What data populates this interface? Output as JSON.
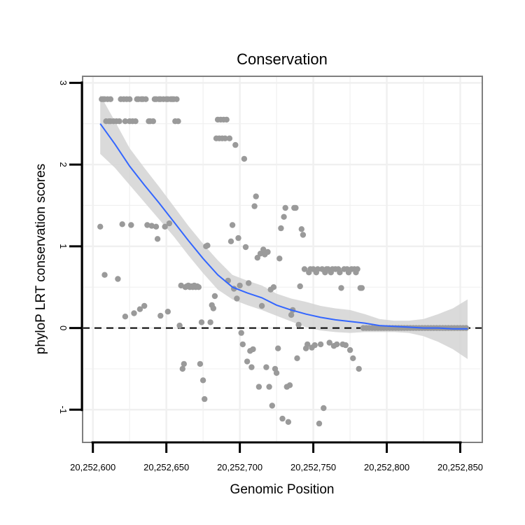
{
  "chart_data": {
    "type": "scatter",
    "title": "Conservation",
    "xlabel": "Genomic Position",
    "ylabel": "phyloP LRT conservation scores",
    "xlim": [
      20252593,
      20252865
    ],
    "ylim": [
      -1.4,
      3.08
    ],
    "xticks": [
      20252600,
      20252650,
      20252700,
      20252750,
      20252800,
      20252850
    ],
    "xtick_labels": [
      "20,252,600",
      "20,252,650",
      "20,252,700",
      "20,252,750",
      "20,252,800",
      "20,252,850"
    ],
    "yticks": [
      -1,
      0,
      1,
      2,
      3
    ],
    "ytick_labels": [
      "-1",
      "0",
      "1",
      "2",
      "3"
    ],
    "reference_line": {
      "y": 0,
      "style": "dashed"
    },
    "colors": {
      "points": "#9a9a9a",
      "smooth": "#3366ff",
      "band": "#d3d3d3",
      "frame": "#7f7f7f",
      "grid": "#f0f0f0"
    },
    "points": [
      {
        "x": 20252605,
        "y": 1.24
      },
      {
        "x": 20252606,
        "y": 2.8
      },
      {
        "x": 20252607,
        "y": 2.8
      },
      {
        "x": 20252608,
        "y": 2.8
      },
      {
        "x": 20252608,
        "y": 0.65
      },
      {
        "x": 20252609,
        "y": 2.53
      },
      {
        "x": 20252610,
        "y": 2.8
      },
      {
        "x": 20252611,
        "y": 2.53
      },
      {
        "x": 20252612,
        "y": 2.8
      },
      {
        "x": 20252612,
        "y": 2.53
      },
      {
        "x": 20252614,
        "y": 2.53
      },
      {
        "x": 20252616,
        "y": 2.53
      },
      {
        "x": 20252617,
        "y": 0.6
      },
      {
        "x": 20252618,
        "y": 2.53
      },
      {
        "x": 20252619,
        "y": 2.8
      },
      {
        "x": 20252620,
        "y": 1.27
      },
      {
        "x": 20252621,
        "y": 2.8
      },
      {
        "x": 20252622,
        "y": 2.53
      },
      {
        "x": 20252622,
        "y": 0.14
      },
      {
        "x": 20252623,
        "y": 2.8
      },
      {
        "x": 20252625,
        "y": 2.53
      },
      {
        "x": 20252625,
        "y": 2.8
      },
      {
        "x": 20252626,
        "y": 1.26
      },
      {
        "x": 20252627,
        "y": 2.53
      },
      {
        "x": 20252628,
        "y": 0.18
      },
      {
        "x": 20252629,
        "y": 2.53
      },
      {
        "x": 20252630,
        "y": 2.8
      },
      {
        "x": 20252631,
        "y": 2.8
      },
      {
        "x": 20252632,
        "y": 0.23
      },
      {
        "x": 20252633,
        "y": 2.8
      },
      {
        "x": 20252634,
        "y": 2.8
      },
      {
        "x": 20252635,
        "y": 0.27
      },
      {
        "x": 20252636,
        "y": 2.8
      },
      {
        "x": 20252637,
        "y": 1.26
      },
      {
        "x": 20252638,
        "y": 2.53
      },
      {
        "x": 20252639,
        "y": 2.53
      },
      {
        "x": 20252640,
        "y": 1.25
      },
      {
        "x": 20252641,
        "y": 2.53
      },
      {
        "x": 20252642,
        "y": 2.8
      },
      {
        "x": 20252643,
        "y": 1.24
      },
      {
        "x": 20252643,
        "y": 2.8
      },
      {
        "x": 20252644,
        "y": 1.09
      },
      {
        "x": 20252645,
        "y": 2.8
      },
      {
        "x": 20252646,
        "y": 0.15
      },
      {
        "x": 20252646,
        "y": 2.8
      },
      {
        "x": 20252648,
        "y": 2.8
      },
      {
        "x": 20252649,
        "y": 1.24
      },
      {
        "x": 20252650,
        "y": 2.8
      },
      {
        "x": 20252651,
        "y": 0.2
      },
      {
        "x": 20252651,
        "y": 2.8
      },
      {
        "x": 20252652,
        "y": 1.28
      },
      {
        "x": 20252653,
        "y": 2.8
      },
      {
        "x": 20252654,
        "y": 2.8
      },
      {
        "x": 20252655,
        "y": 2.8
      },
      {
        "x": 20252656,
        "y": 2.53
      },
      {
        "x": 20252657,
        "y": 2.8
      },
      {
        "x": 20252658,
        "y": 2.53
      },
      {
        "x": 20252659,
        "y": 0.03
      },
      {
        "x": 20252660,
        "y": 0.52
      },
      {
        "x": 20252661,
        "y": -0.5
      },
      {
        "x": 20252662,
        "y": -0.44
      },
      {
        "x": 20252663,
        "y": 0.5
      },
      {
        "x": 20252664,
        "y": 0.51
      },
      {
        "x": 20252665,
        "y": 0.52
      },
      {
        "x": 20252666,
        "y": 0.5
      },
      {
        "x": 20252667,
        "y": 0.51
      },
      {
        "x": 20252668,
        "y": 0.5
      },
      {
        "x": 20252669,
        "y": 0.52
      },
      {
        "x": 20252670,
        "y": 0.5
      },
      {
        "x": 20252671,
        "y": 0.51
      },
      {
        "x": 20252672,
        "y": 0.5
      },
      {
        "x": 20252673,
        "y": -0.44
      },
      {
        "x": 20252674,
        "y": 0.07
      },
      {
        "x": 20252675,
        "y": -0.64
      },
      {
        "x": 20252676,
        "y": -0.87
      },
      {
        "x": 20252677,
        "y": 1.0
      },
      {
        "x": 20252678,
        "y": 1.01
      },
      {
        "x": 20252680,
        "y": 0.07
      },
      {
        "x": 20252681,
        "y": 0.28
      },
      {
        "x": 20252682,
        "y": 0.24
      },
      {
        "x": 20252683,
        "y": 0.39
      },
      {
        "x": 20252684,
        "y": 2.32
      },
      {
        "x": 20252685,
        "y": 2.55
      },
      {
        "x": 20252686,
        "y": 2.32
      },
      {
        "x": 20252687,
        "y": 2.55
      },
      {
        "x": 20252688,
        "y": 2.32
      },
      {
        "x": 20252689,
        "y": 2.55
      },
      {
        "x": 20252690,
        "y": 2.32
      },
      {
        "x": 20252691,
        "y": 2.55
      },
      {
        "x": 20252692,
        "y": 0.58
      },
      {
        "x": 20252693,
        "y": 2.32
      },
      {
        "x": 20252694,
        "y": 1.06
      },
      {
        "x": 20252695,
        "y": 1.26
      },
      {
        "x": 20252696,
        "y": 0.48
      },
      {
        "x": 20252697,
        "y": 2.24
      },
      {
        "x": 20252698,
        "y": 0.36
      },
      {
        "x": 20252699,
        "y": 1.1
      },
      {
        "x": 20252700,
        "y": 0.52
      },
      {
        "x": 20252701,
        "y": -0.06
      },
      {
        "x": 20252702,
        "y": -0.2
      },
      {
        "x": 20252703,
        "y": 2.07
      },
      {
        "x": 20252704,
        "y": 0.99
      },
      {
        "x": 20252705,
        "y": -0.41
      },
      {
        "x": 20252706,
        "y": 0.55
      },
      {
        "x": 20252707,
        "y": -0.28
      },
      {
        "x": 20252708,
        "y": -0.48
      },
      {
        "x": 20252709,
        "y": -0.26
      },
      {
        "x": 20252710,
        "y": 1.49
      },
      {
        "x": 20252711,
        "y": 1.61
      },
      {
        "x": 20252712,
        "y": 0.86
      },
      {
        "x": 20252713,
        "y": -0.72
      },
      {
        "x": 20252714,
        "y": 0.91
      },
      {
        "x": 20252715,
        "y": 0.27
      },
      {
        "x": 20252716,
        "y": 0.96
      },
      {
        "x": 20252717,
        "y": 0.9
      },
      {
        "x": 20252718,
        "y": -0.48
      },
      {
        "x": 20252719,
        "y": 0.93
      },
      {
        "x": 20252720,
        "y": -0.72
      },
      {
        "x": 20252721,
        "y": 0.47
      },
      {
        "x": 20252722,
        "y": -0.95
      },
      {
        "x": 20252723,
        "y": 0.5
      },
      {
        "x": 20252724,
        "y": -0.5
      },
      {
        "x": 20252725,
        "y": -0.55
      },
      {
        "x": 20252726,
        "y": -0.25
      },
      {
        "x": 20252727,
        "y": 0.85
      },
      {
        "x": 20252728,
        "y": 1.22
      },
      {
        "x": 20252729,
        "y": -1.11
      },
      {
        "x": 20252730,
        "y": 1.36
      },
      {
        "x": 20252731,
        "y": 1.47
      },
      {
        "x": 20252732,
        "y": -0.72
      },
      {
        "x": 20252733,
        "y": -1.15
      },
      {
        "x": 20252734,
        "y": -0.7
      },
      {
        "x": 20252735,
        "y": 0.16
      },
      {
        "x": 20252736,
        "y": 0.22
      },
      {
        "x": 20252737,
        "y": 1.47
      },
      {
        "x": 20252738,
        "y": 1.47
      },
      {
        "x": 20252739,
        "y": -0.37
      },
      {
        "x": 20252740,
        "y": 0.04
      },
      {
        "x": 20252741,
        "y": 0.51
      },
      {
        "x": 20252742,
        "y": 1.21
      },
      {
        "x": 20252743,
        "y": 1.14
      },
      {
        "x": 20252744,
        "y": 0.72
      },
      {
        "x": 20252745,
        "y": -0.25
      },
      {
        "x": 20252746,
        "y": -0.2
      },
      {
        "x": 20252747,
        "y": 0.68
      },
      {
        "x": 20252748,
        "y": 0.72
      },
      {
        "x": 20252749,
        "y": -0.24
      },
      {
        "x": 20252750,
        "y": 0.72
      },
      {
        "x": 20252751,
        "y": -0.21
      },
      {
        "x": 20252752,
        "y": 0.68
      },
      {
        "x": 20252753,
        "y": 0.72
      },
      {
        "x": 20252754,
        "y": -1.17
      },
      {
        "x": 20252755,
        "y": -0.2
      },
      {
        "x": 20252756,
        "y": 0.72
      },
      {
        "x": 20252757,
        "y": -0.98
      },
      {
        "x": 20252758,
        "y": 0.68
      },
      {
        "x": 20252759,
        "y": 0.72
      },
      {
        "x": 20252760,
        "y": 0.72
      },
      {
        "x": 20252761,
        "y": -0.18
      },
      {
        "x": 20252762,
        "y": 0.68
      },
      {
        "x": 20252763,
        "y": 0.72
      },
      {
        "x": 20252764,
        "y": -0.22
      },
      {
        "x": 20252765,
        "y": 0.72
      },
      {
        "x": 20252766,
        "y": -0.2
      },
      {
        "x": 20252767,
        "y": 0.72
      },
      {
        "x": 20252768,
        "y": 0.68
      },
      {
        "x": 20252769,
        "y": 0.49
      },
      {
        "x": 20252770,
        "y": -0.2
      },
      {
        "x": 20252771,
        "y": 0.72
      },
      {
        "x": 20252772,
        "y": -0.21
      },
      {
        "x": 20252773,
        "y": 0.72
      },
      {
        "x": 20252774,
        "y": 0.68
      },
      {
        "x": 20252775,
        "y": -0.27
      },
      {
        "x": 20252776,
        "y": 0.72
      },
      {
        "x": 20252777,
        "y": -0.37
      },
      {
        "x": 20252778,
        "y": 0.72
      },
      {
        "x": 20252779,
        "y": 0.68
      },
      {
        "x": 20252780,
        "y": 0.72
      },
      {
        "x": 20252781,
        "y": -0.5
      },
      {
        "x": 20252782,
        "y": 0.49
      },
      {
        "x": 20252783,
        "y": 0.49
      },
      {
        "x": 20252784,
        "y": 0.0
      },
      {
        "x": 20252786,
        "y": 0.0
      },
      {
        "x": 20252788,
        "y": 0.0
      },
      {
        "x": 20252790,
        "y": 0.0
      },
      {
        "x": 20252792,
        "y": 0.0
      },
      {
        "x": 20252794,
        "y": 0.0
      },
      {
        "x": 20252796,
        "y": 0.0
      },
      {
        "x": 20252798,
        "y": 0.0
      },
      {
        "x": 20252800,
        "y": 0.0
      },
      {
        "x": 20252802,
        "y": 0.0
      },
      {
        "x": 20252804,
        "y": 0.0
      },
      {
        "x": 20252806,
        "y": 0.0
      },
      {
        "x": 20252808,
        "y": 0.0
      },
      {
        "x": 20252810,
        "y": 0.0
      },
      {
        "x": 20252812,
        "y": 0.0
      },
      {
        "x": 20252814,
        "y": 0.0
      },
      {
        "x": 20252816,
        "y": 0.0
      },
      {
        "x": 20252818,
        "y": 0.0
      },
      {
        "x": 20252820,
        "y": 0.0
      },
      {
        "x": 20252822,
        "y": 0.0
      },
      {
        "x": 20252824,
        "y": 0.0
      },
      {
        "x": 20252826,
        "y": 0.0
      },
      {
        "x": 20252828,
        "y": 0.0
      },
      {
        "x": 20252830,
        "y": 0.0
      },
      {
        "x": 20252832,
        "y": 0.0
      },
      {
        "x": 20252834,
        "y": 0.0
      },
      {
        "x": 20252836,
        "y": 0.0
      },
      {
        "x": 20252838,
        "y": 0.0
      },
      {
        "x": 20252840,
        "y": 0.0
      },
      {
        "x": 20252842,
        "y": 0.0
      },
      {
        "x": 20252844,
        "y": 0.0
      },
      {
        "x": 20252846,
        "y": 0.0
      },
      {
        "x": 20252848,
        "y": 0.0
      },
      {
        "x": 20252850,
        "y": 0.0
      },
      {
        "x": 20252852,
        "y": 0.0
      },
      {
        "x": 20252854,
        "y": 0.0
      }
    ],
    "smooth": {
      "x": [
        20252605,
        20252615,
        20252625,
        20252635,
        20252645,
        20252655,
        20252665,
        20252675,
        20252685,
        20252695,
        20252705,
        20252715,
        20252725,
        20252735,
        20252745,
        20252755,
        20252765,
        20252775,
        20252785,
        20252795,
        20252805,
        20252815,
        20252825,
        20252835,
        20252845,
        20252855
      ],
      "y": [
        2.5,
        2.25,
        1.98,
        1.75,
        1.53,
        1.3,
        1.07,
        0.85,
        0.65,
        0.5,
        0.43,
        0.37,
        0.28,
        0.22,
        0.17,
        0.13,
        0.1,
        0.08,
        0.06,
        0.03,
        0.02,
        0.01,
        0.0,
        0.0,
        -0.01,
        -0.01
      ],
      "lower": [
        2.13,
        1.96,
        1.75,
        1.54,
        1.33,
        1.12,
        0.89,
        0.67,
        0.47,
        0.35,
        0.28,
        0.22,
        0.15,
        0.08,
        0.01,
        -0.03,
        -0.05,
        -0.06,
        -0.05,
        -0.05,
        -0.05,
        -0.06,
        -0.1,
        -0.17,
        -0.26,
        -0.38
      ],
      "upper": [
        2.85,
        2.53,
        2.2,
        1.96,
        1.73,
        1.49,
        1.25,
        1.03,
        0.83,
        0.65,
        0.58,
        0.52,
        0.42,
        0.36,
        0.32,
        0.27,
        0.24,
        0.22,
        0.17,
        0.11,
        0.09,
        0.09,
        0.11,
        0.17,
        0.24,
        0.35
      ]
    }
  }
}
